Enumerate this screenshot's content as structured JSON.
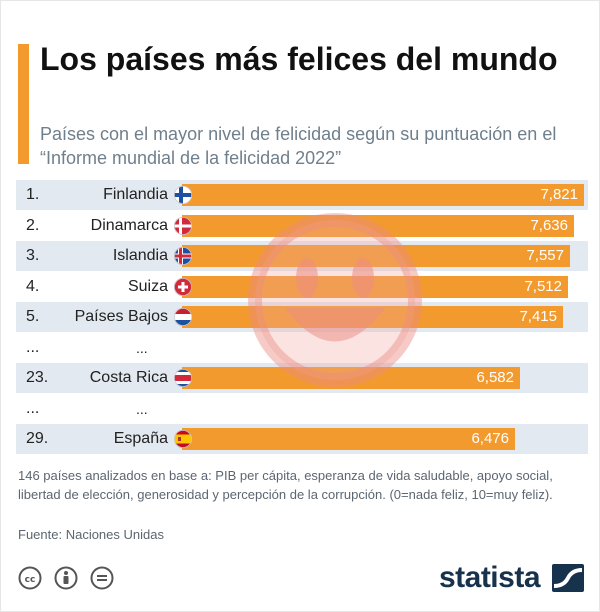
{
  "header": {
    "title": "Los países más felices del mundo",
    "subtitle": "Países con el mayor nivel de felicidad según su puntuación en el “Informe mundial de la felicidad 2022”"
  },
  "chart_data": {
    "type": "bar",
    "orientation": "horizontal",
    "title": "Los países más felices del mundo",
    "rows": [
      {
        "rank": "1.",
        "country": "Finlandia",
        "value": 7.821,
        "label": "7,821",
        "flag": "finland-flag"
      },
      {
        "rank": "2.",
        "country": "Dinamarca",
        "value": 7.636,
        "label": "7,636",
        "flag": "denmark-flag"
      },
      {
        "rank": "3.",
        "country": "Islandia",
        "value": 7.557,
        "label": "7,557",
        "flag": "iceland-flag"
      },
      {
        "rank": "4.",
        "country": "Suiza",
        "value": 7.512,
        "label": "7,512",
        "flag": "switzerland-flag"
      },
      {
        "rank": "5.",
        "country": "Países Bajos",
        "value": 7.415,
        "label": "7,415",
        "flag": "netherlands-flag"
      },
      {
        "rank": "...",
        "country": "...",
        "value": null,
        "label": "",
        "flag": ""
      },
      {
        "rank": "23.",
        "country": "Costa Rica",
        "value": 6.582,
        "label": "6,582",
        "flag": "costa-rica-flag"
      },
      {
        "rank": "...",
        "country": "...",
        "value": null,
        "label": "",
        "flag": ""
      },
      {
        "rank": "29.",
        "country": "España",
        "value": 6.476,
        "label": "6,476",
        "flag": "spain-flag"
      }
    ],
    "xlim": [
      0,
      7.821
    ],
    "bar_color": "#f39a2f",
    "shaded_row_color": "#e3e9f0",
    "grid": false
  },
  "footer": {
    "note": "146 países analizados en base a: PIB per cápita, esperanza de vida saludable, apoyo social, libertad de elección, generosidad y percepción de la corrupción. (0=nada feliz, 10=muy feliz).",
    "source": "Fuente: Naciones Unidas",
    "brand": "statista",
    "license_icons": [
      "cc-icon",
      "by-icon",
      "nd-icon"
    ]
  },
  "colors": {
    "accent": "#f39a2f",
    "title": "#111111",
    "subtitle": "#6f7f8c",
    "brand": "#17324d"
  }
}
